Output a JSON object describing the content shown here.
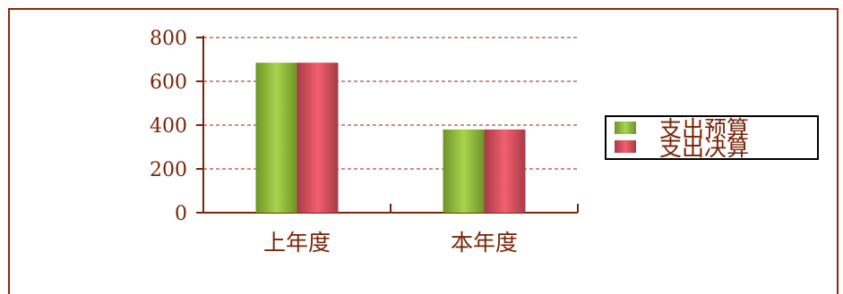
{
  "chart_data": {
    "type": "bar",
    "categories": [
      "上年度",
      "本年度"
    ],
    "series": [
      {
        "name": "支出预算",
        "values": [
          685,
          380
        ],
        "color": "#8fc23a"
      },
      {
        "name": "支出决算",
        "values": [
          685,
          380
        ],
        "color": "#d94a5c"
      }
    ],
    "yticks": [
      "0",
      "200",
      "400",
      "600",
      "800"
    ],
    "ylim": [
      0,
      800
    ],
    "grid": true,
    "legend": "right",
    "colors": {
      "axis": "#7a2408",
      "grid": "#8b2a0a"
    }
  }
}
